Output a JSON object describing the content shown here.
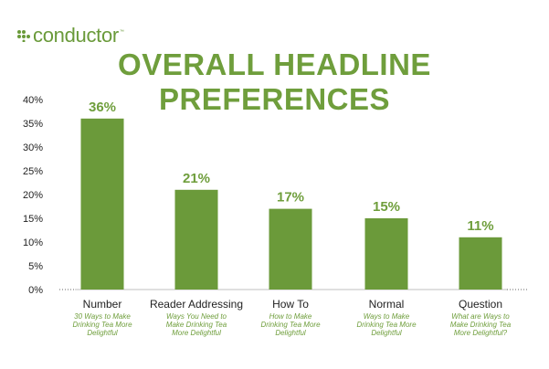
{
  "logo": {
    "small_text": "",
    "text": "conductor",
    "tm": "™"
  },
  "chart_data": {
    "type": "bar",
    "title": "OVERALL HEADLINE PREFERENCES",
    "categories": [
      "Number",
      "Reader Addressing",
      "How To",
      "Normal",
      "Question"
    ],
    "category_examples": [
      [
        "30 Ways to Make",
        "Drinking Tea More",
        "Delightful"
      ],
      [
        "Ways You Need to",
        "Make Drinking Tea",
        "More Delightful"
      ],
      [
        "How to Make",
        "Drinking Tea More",
        "Delightful"
      ],
      [
        "Ways to Make",
        "Drinking Tea More",
        "Delightful"
      ],
      [
        "What are Ways to",
        "Make Drinking Tea",
        "More Delightful?"
      ]
    ],
    "values": [
      36,
      21,
      17,
      15,
      11
    ],
    "data_labels": [
      "36%",
      "21%",
      "17%",
      "15%",
      "11%"
    ],
    "ylim": [
      0,
      40
    ],
    "yticks": [
      "0%",
      "5%",
      "10%",
      "15%",
      "20%",
      "25%",
      "30%",
      "35%",
      "40%"
    ],
    "grid": false,
    "bar_color": "#6b9a3a",
    "xlabel": "",
    "ylabel": ""
  }
}
